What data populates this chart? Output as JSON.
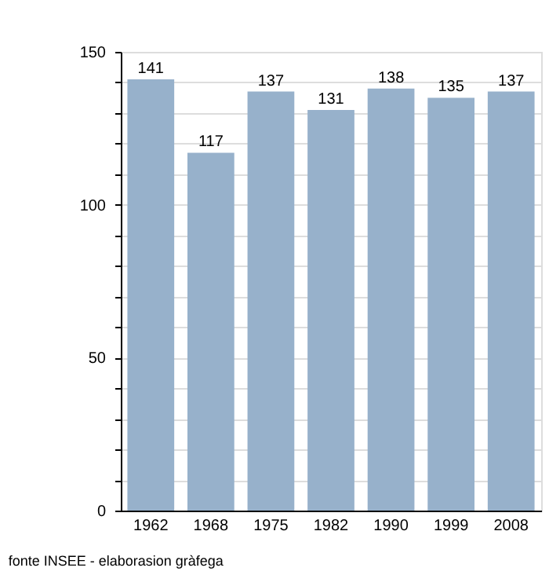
{
  "chart_data": {
    "type": "bar",
    "categories": [
      "1962",
      "1968",
      "1975",
      "1982",
      "1990",
      "1999",
      "2008"
    ],
    "values": [
      141,
      117,
      137,
      131,
      138,
      135,
      137
    ],
    "color": "#97b1cb",
    "ylim": [
      0,
      150
    ],
    "yticks": [
      0,
      {
        "value": 10,
        "label": null
      },
      {
        "value": 20,
        "label": null
      },
      {
        "value": 30,
        "label": null
      },
      {
        "value": 40,
        "label": null
      },
      50,
      {
        "value": 60,
        "label": null
      },
      {
        "value": 70,
        "label": null
      },
      {
        "value": 80,
        "label": null
      },
      {
        "value": 90,
        "label": null
      },
      100,
      {
        "value": 110,
        "label": null
      },
      {
        "value": 120,
        "label": null
      },
      {
        "value": 130,
        "label": null
      },
      {
        "value": 140,
        "label": null
      },
      150
    ],
    "grid": true,
    "data_labels": true,
    "annotations": [
      "fonte INSEE - elaborasion gràfega"
    ]
  }
}
